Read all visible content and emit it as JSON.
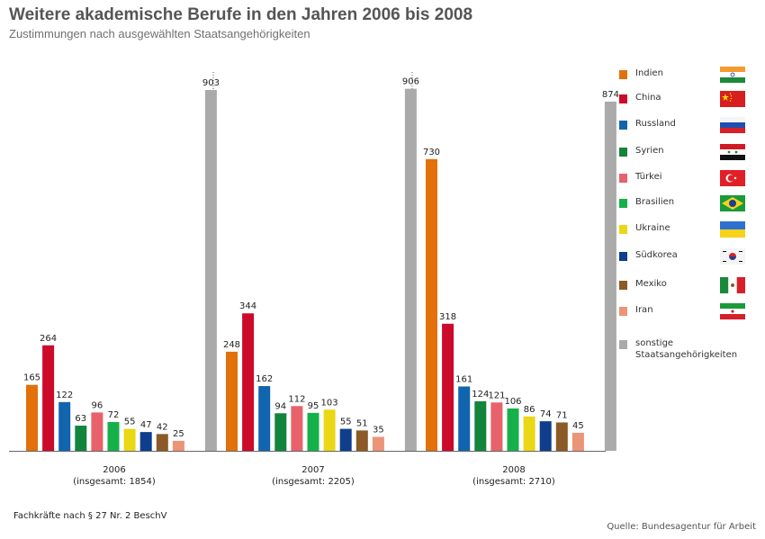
{
  "header": {
    "title": "Weitere akademische Berufe in den Jahren 2006 bis 2008",
    "subtitle": "Zustimmungen nach ausgewählten Staatsangehörigkeiten"
  },
  "footer": {
    "note": "Fachkräfte nach § 27 Nr. 2 BeschV",
    "source": "Quelle: Bundesagentur für Arbeit"
  },
  "legend": [
    {
      "label": "Indien",
      "color": "#e2700b",
      "flag": "india-flag-icon"
    },
    {
      "label": "China",
      "color": "#cc0a2a",
      "flag": "china-flag-icon"
    },
    {
      "label": "Russland",
      "color": "#1165ae",
      "flag": "russia-flag-icon"
    },
    {
      "label": "Syrien",
      "color": "#13843c",
      "flag": "syria-flag-icon"
    },
    {
      "label": "Türkei",
      "color": "#e8626b",
      "flag": "turkey-flag-icon"
    },
    {
      "label": "Brasilien",
      "color": "#16b04a",
      "flag": "brazil-flag-icon"
    },
    {
      "label": "Ukraine",
      "color": "#ead716",
      "flag": "ukraine-flag-icon"
    },
    {
      "label": "Südkorea",
      "color": "#0e3e8c",
      "flag": "south-korea-flag-icon"
    },
    {
      "label": "Mexiko",
      "color": "#8c5a26",
      "flag": "mexico-flag-icon"
    },
    {
      "label": "Iran",
      "color": "#ec9478",
      "flag": "iran-flag-icon"
    },
    {
      "label": "sonstige Staatsangehörigkeiten",
      "line1": "sonstige",
      "line2": "Staatsangehörigkeiten",
      "color": "#aaaaaa",
      "flag": ""
    }
  ],
  "chart_data": {
    "type": "bar",
    "title": "Weitere akademische Berufe in den Jahren 2006 bis 2008",
    "subtitle": "Zustimmungen nach ausgewählten Staatsangehörigkeiten",
    "categories": [
      "2006",
      "2007",
      "2008"
    ],
    "category_totals": [
      "(insgesamt: 1854)",
      "(insgesamt: 2205)",
      "(insgesamt: 2710)"
    ],
    "ylim": [
      0,
      903
    ],
    "grid": false,
    "legend_position": "right",
    "series": [
      {
        "name": "Indien",
        "color": "#e2700b",
        "values": [
          165,
          248,
          730
        ]
      },
      {
        "name": "China",
        "color": "#cc0a2a",
        "values": [
          264,
          344,
          318
        ]
      },
      {
        "name": "Russland",
        "color": "#1165ae",
        "values": [
          122,
          162,
          161
        ]
      },
      {
        "name": "Syrien",
        "color": "#13843c",
        "values": [
          63,
          94,
          124
        ]
      },
      {
        "name": "Türkei",
        "color": "#e8626b",
        "values": [
          96,
          112,
          121
        ]
      },
      {
        "name": "Brasilien",
        "color": "#16b04a",
        "values": [
          72,
          95,
          106
        ]
      },
      {
        "name": "Ukraine",
        "color": "#ead716",
        "values": [
          55,
          103,
          86
        ]
      },
      {
        "name": "Südkorea",
        "color": "#0e3e8c",
        "values": [
          47,
          55,
          74
        ]
      },
      {
        "name": "Mexiko",
        "color": "#8c5a26",
        "values": [
          42,
          51,
          71
        ]
      },
      {
        "name": "Iran",
        "color": "#ec9478",
        "values": [
          25,
          35,
          45
        ]
      },
      {
        "name": "sonstige Staatsangehörigkeiten",
        "color": "#aaaaaa",
        "values": [
          903,
          906,
          874
        ]
      }
    ]
  }
}
